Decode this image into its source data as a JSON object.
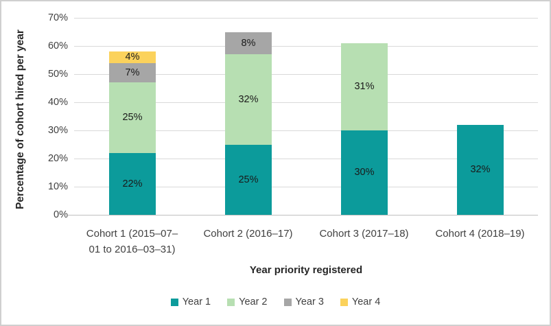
{
  "chart_data": {
    "type": "bar",
    "stacked": true,
    "title": "",
    "xlabel": "Year priority registered",
    "ylabel": "Percentage of cohort hired per year",
    "ylim": [
      0,
      70
    ],
    "grid": true,
    "legend_position": "bottom",
    "y_ticks": [
      "0%",
      "10%",
      "20%",
      "30%",
      "40%",
      "50%",
      "60%",
      "70%"
    ],
    "categories": [
      "Cohort 1 (2015–07–01 to 2016–03–31)",
      "Cohort 2 (2016–17)",
      "Cohort 3 (2017–18)",
      "Cohort 4 (2018–19)"
    ],
    "category_lines": [
      [
        "Cohort 1 (2015–07–",
        "01 to 2016–03–31)"
      ],
      [
        "Cohort 2 (2016–17)"
      ],
      [
        "Cohort 3 (2017–18)"
      ],
      [
        "Cohort 4 (2018–19)"
      ]
    ],
    "series": [
      {
        "name": "Year 1",
        "color": "#0c9b9b",
        "values": [
          22,
          25,
          30,
          32
        ],
        "labels": [
          "22%",
          "25%",
          "30%",
          "32%"
        ]
      },
      {
        "name": "Year 2",
        "color": "#b7dfb2",
        "values": [
          25,
          32,
          31,
          0
        ],
        "labels": [
          "25%",
          "32%",
          "31%",
          ""
        ]
      },
      {
        "name": "Year 3",
        "color": "#a6a6a6",
        "values": [
          7,
          8,
          0,
          0
        ],
        "labels": [
          "7%",
          "8%",
          "",
          ""
        ]
      },
      {
        "name": "Year 4",
        "color": "#fbd25c",
        "values": [
          4,
          0,
          0,
          0
        ],
        "labels": [
          "4%",
          "",
          "",
          ""
        ]
      }
    ],
    "legend": [
      "Year 1",
      "Year 2",
      "Year 3",
      "Year 4"
    ],
    "colors": {
      "gridline": "#d9d9d9",
      "axis_line": "#bfbfbf",
      "tick_text": "#404040",
      "data_label_text": "#1a1a1a",
      "axis_title_text": "#262626"
    }
  }
}
